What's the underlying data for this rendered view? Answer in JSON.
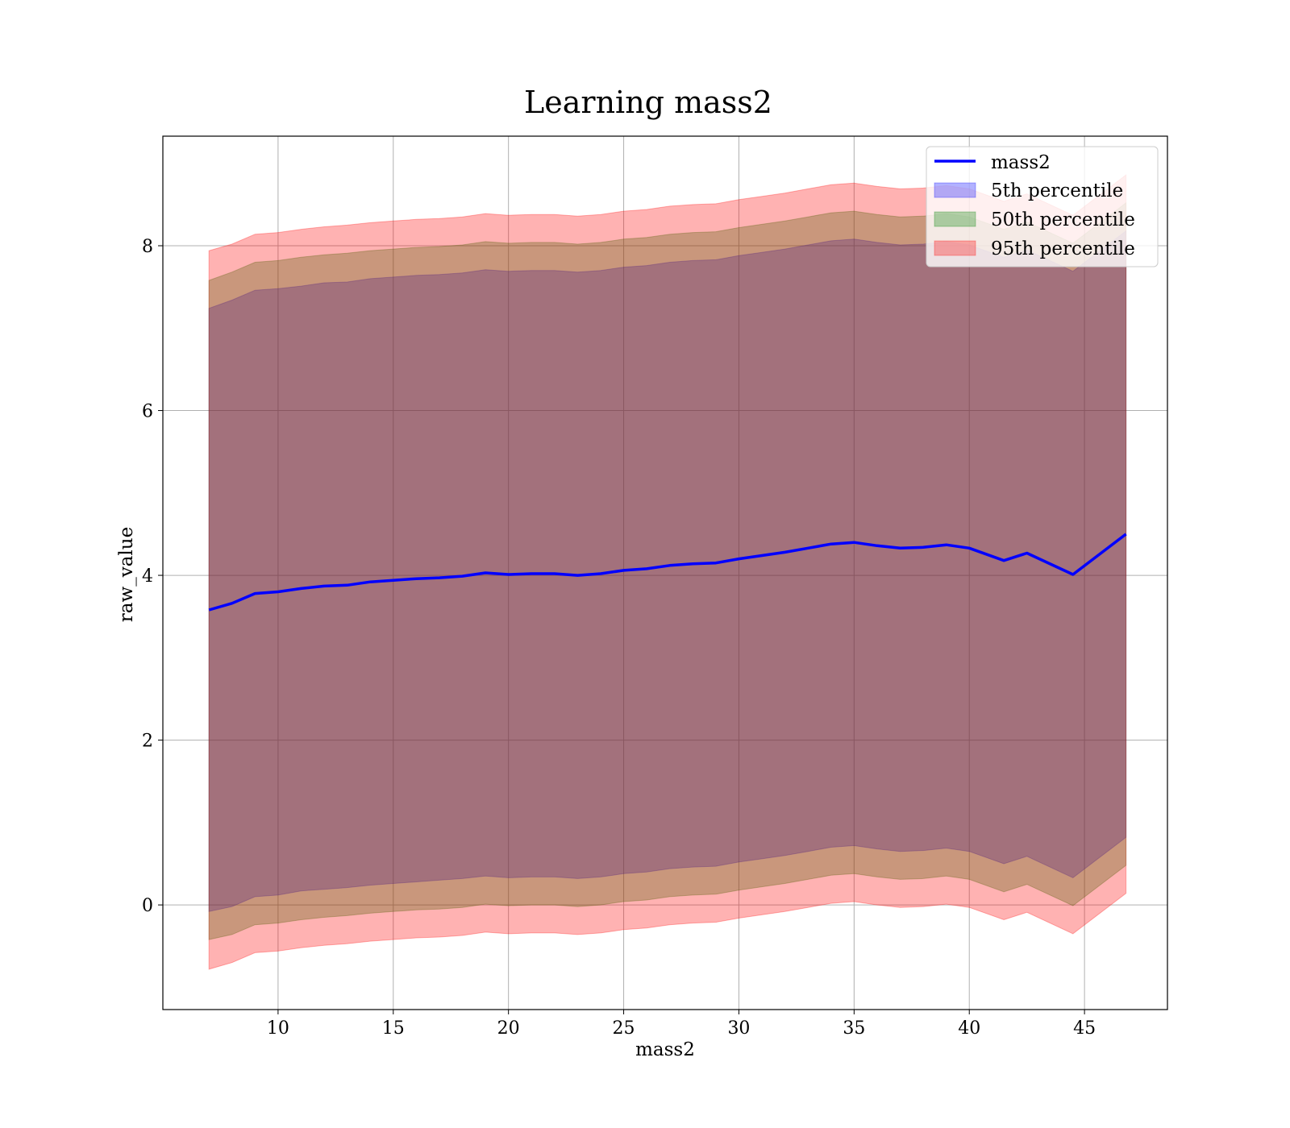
{
  "chart_data": {
    "type": "area",
    "title": "Learning mass2",
    "xlabel": "mass2",
    "ylabel": "raw_value",
    "xlim": [
      5,
      48.6
    ],
    "ylim": [
      -1.27,
      9.33
    ],
    "xticks": [
      10,
      15,
      20,
      25,
      30,
      35,
      40,
      45
    ],
    "yticks": [
      0,
      2,
      4,
      6,
      8
    ],
    "grid": true,
    "legend_position": "top-right",
    "x": [
      7.0,
      8.0,
      9.0,
      10.0,
      11.0,
      12.0,
      13.0,
      14.0,
      15.0,
      16.0,
      17.0,
      18.0,
      19.0,
      20.0,
      21.0,
      22.0,
      23.0,
      24.0,
      25.0,
      26.0,
      27.0,
      28.0,
      29.0,
      30.0,
      31.0,
      32.0,
      33.0,
      34.0,
      35.0,
      36.0,
      37.0,
      38.0,
      39.0,
      40.0,
      41.5,
      42.5,
      44.5,
      46.8
    ],
    "line": {
      "name": "mass2",
      "color": "#0000ff",
      "values": [
        3.58,
        3.66,
        3.78,
        3.8,
        3.84,
        3.87,
        3.88,
        3.92,
        3.94,
        3.96,
        3.97,
        3.99,
        4.03,
        4.01,
        4.02,
        4.02,
        4.0,
        4.02,
        4.06,
        4.08,
        4.12,
        4.14,
        4.15,
        4.2,
        4.24,
        4.28,
        4.33,
        4.38,
        4.4,
        4.36,
        4.33,
        4.34,
        4.37,
        4.33,
        4.18,
        4.27,
        4.01,
        4.5
      ]
    },
    "bands": [
      {
        "name": "5th percentile",
        "color": "#0000ff",
        "opacity": 0.3,
        "lower": [
          -0.08,
          -0.02,
          0.1,
          0.12,
          0.17,
          0.19,
          0.21,
          0.24,
          0.26,
          0.28,
          0.3,
          0.32,
          0.35,
          0.33,
          0.34,
          0.34,
          0.32,
          0.34,
          0.38,
          0.4,
          0.44,
          0.46,
          0.47,
          0.52,
          0.56,
          0.6,
          0.65,
          0.7,
          0.72,
          0.68,
          0.65,
          0.66,
          0.69,
          0.65,
          0.5,
          0.59,
          0.33,
          0.82
        ],
        "upper": [
          7.24,
          7.34,
          7.46,
          7.48,
          7.51,
          7.55,
          7.56,
          7.6,
          7.62,
          7.64,
          7.65,
          7.67,
          7.71,
          7.69,
          7.7,
          7.7,
          7.68,
          7.7,
          7.74,
          7.76,
          7.8,
          7.82,
          7.83,
          7.88,
          7.92,
          7.96,
          8.01,
          8.06,
          8.08,
          8.04,
          8.01,
          8.02,
          8.05,
          8.01,
          7.86,
          7.95,
          7.69,
          8.18
        ]
      },
      {
        "name": "50th percentile",
        "color": "#008000",
        "opacity": 0.3,
        "lower": [
          -0.42,
          -0.36,
          -0.24,
          -0.22,
          -0.18,
          -0.15,
          -0.13,
          -0.1,
          -0.08,
          -0.06,
          -0.05,
          -0.03,
          0.01,
          -0.01,
          0.0,
          0.0,
          -0.02,
          0.0,
          0.04,
          0.06,
          0.1,
          0.12,
          0.13,
          0.18,
          0.22,
          0.26,
          0.31,
          0.36,
          0.38,
          0.34,
          0.31,
          0.32,
          0.35,
          0.31,
          0.16,
          0.25,
          -0.01,
          0.48
        ],
        "upper": [
          7.58,
          7.68,
          7.8,
          7.82,
          7.86,
          7.89,
          7.91,
          7.94,
          7.96,
          7.98,
          7.99,
          8.01,
          8.05,
          8.03,
          8.04,
          8.04,
          8.02,
          8.04,
          8.08,
          8.1,
          8.14,
          8.16,
          8.17,
          8.22,
          8.26,
          8.3,
          8.35,
          8.4,
          8.42,
          8.38,
          8.35,
          8.36,
          8.39,
          8.35,
          8.2,
          8.29,
          8.03,
          8.52
        ]
      },
      {
        "name": "95th percentile",
        "color": "#ff0000",
        "opacity": 0.3,
        "lower": [
          -0.78,
          -0.7,
          -0.58,
          -0.56,
          -0.52,
          -0.49,
          -0.47,
          -0.44,
          -0.42,
          -0.4,
          -0.39,
          -0.37,
          -0.33,
          -0.35,
          -0.34,
          -0.34,
          -0.36,
          -0.34,
          -0.3,
          -0.28,
          -0.24,
          -0.22,
          -0.21,
          -0.16,
          -0.12,
          -0.08,
          -0.03,
          0.02,
          0.04,
          0.0,
          -0.03,
          -0.02,
          0.01,
          -0.03,
          -0.18,
          -0.09,
          -0.35,
          0.14
        ],
        "upper": [
          7.94,
          8.02,
          8.14,
          8.16,
          8.2,
          8.23,
          8.25,
          8.28,
          8.3,
          8.32,
          8.33,
          8.35,
          8.39,
          8.37,
          8.38,
          8.38,
          8.36,
          8.38,
          8.42,
          8.44,
          8.48,
          8.5,
          8.51,
          8.56,
          8.6,
          8.64,
          8.69,
          8.74,
          8.76,
          8.72,
          8.69,
          8.7,
          8.73,
          8.69,
          8.54,
          8.63,
          8.37,
          8.86
        ]
      }
    ],
    "legend": [
      "mass2",
      "5th percentile",
      "50th percentile",
      "95th percentile"
    ]
  }
}
